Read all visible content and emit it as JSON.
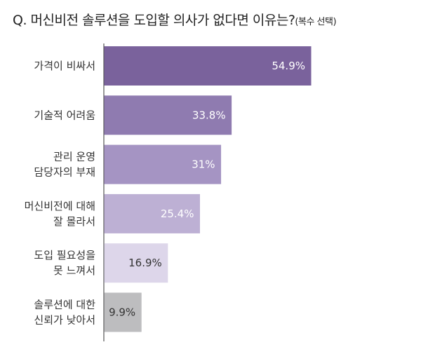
{
  "chart_data": {
    "type": "bar",
    "orientation": "horizontal",
    "title": "Q. 머신비전 솔루션을 도입할 의사가 없다면 이유는?",
    "subtitle": "(복수 선택)",
    "categories": [
      [
        "가격이 비싸서"
      ],
      [
        "기술적 어려움"
      ],
      [
        "관리 운영",
        "담당자의 부재"
      ],
      [
        "머신비전에 대해",
        "잘 몰라서"
      ],
      [
        "도입 필요성을",
        "못 느껴서"
      ],
      [
        "솔루션에 대한",
        "신뢰가 낮아서"
      ]
    ],
    "values": [
      54.9,
      33.8,
      31,
      25.4,
      16.9,
      9.9
    ],
    "data_labels": [
      "54.9%",
      "33.8%",
      "31%",
      "25.4%",
      "16.9%",
      "9.9%"
    ],
    "colors": [
      "#7a629c",
      "#8f7bb0",
      "#a594c3",
      "#bdb0d4",
      "#ddd6ea",
      "#bdbdbf"
    ],
    "label_colors": [
      "#ffffff",
      "#ffffff",
      "#ffffff",
      "#ffffff",
      "#333333",
      "#333333"
    ],
    "xlim": [
      0,
      60
    ],
    "grid": false
  }
}
